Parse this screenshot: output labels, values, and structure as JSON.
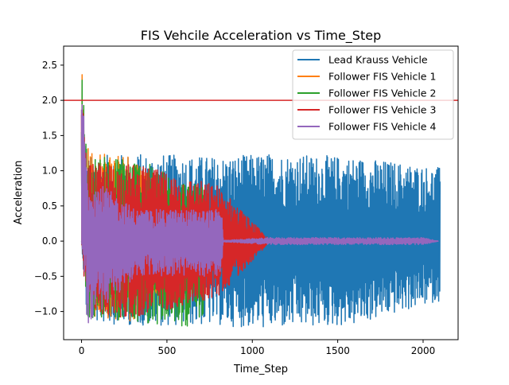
{
  "chart_data": {
    "type": "line",
    "title": "FIS Vehcile Acceleration vs Time_Step",
    "xlabel": "Time_Step",
    "ylabel": "Acceleration",
    "xlim": [
      -105,
      2205
    ],
    "ylim": [
      -1.4,
      2.77
    ],
    "x_ticks": [
      0,
      500,
      1000,
      1500,
      2000
    ],
    "x_tick_labels": [
      "0",
      "500",
      "1000",
      "1500",
      "2000"
    ],
    "y_ticks": [
      -1.0,
      -0.5,
      0.0,
      0.5,
      1.0,
      1.5,
      2.0,
      2.5
    ],
    "y_tick_labels": [
      "−1.0",
      "−0.5",
      "0.0",
      "0.5",
      "1.0",
      "1.5",
      "2.0",
      "2.5"
    ],
    "grid": false,
    "legend_position": "top-right",
    "reference_line": {
      "orientation": "horizontal",
      "y": 2.0,
      "color": "#d62728"
    },
    "series": [
      {
        "name": "Lead Krauss Vehicle",
        "color": "#1f77b4",
        "description_of_shape": "oscillation around 0",
        "x_range": [
          0,
          2100
        ],
        "envelope": [
          {
            "x": 0,
            "upper": 0.0,
            "lower": 0.0
          },
          {
            "x": 30,
            "upper": 1.2,
            "lower": -1.15
          },
          {
            "x": 300,
            "upper": 1.25,
            "lower": -1.2
          },
          {
            "x": 800,
            "upper": 1.2,
            "lower": -1.2
          },
          {
            "x": 1100,
            "upper": 1.25,
            "lower": -1.25
          },
          {
            "x": 1600,
            "upper": 1.2,
            "lower": -1.2
          },
          {
            "x": 2100,
            "upper": 1.05,
            "lower": -0.85
          }
        ]
      },
      {
        "name": "Follower FIS Vehicle 1",
        "color": "#ff7f0e",
        "x_range": [
          0,
          560
        ],
        "peak": 2.55,
        "envelope": [
          {
            "x": 0,
            "upper": 2.55,
            "lower": 0.0
          },
          {
            "x": 30,
            "upper": 1.35,
            "lower": -1.05
          },
          {
            "x": 300,
            "upper": 1.25,
            "lower": -1.15
          },
          {
            "x": 560,
            "upper": 0.6,
            "lower": -0.55
          }
        ]
      },
      {
        "name": "Follower FIS Vehicle 2",
        "color": "#2ca02c",
        "x_range": [
          0,
          720
        ],
        "peak": 2.58,
        "envelope": [
          {
            "x": 0,
            "upper": 2.58,
            "lower": 0.0
          },
          {
            "x": 30,
            "upper": 1.2,
            "lower": -1.1
          },
          {
            "x": 300,
            "upper": 1.2,
            "lower": -1.15
          },
          {
            "x": 720,
            "upper": 0.75,
            "lower": -1.25
          }
        ]
      },
      {
        "name": "Follower FIS Vehicle 3",
        "color": "#d62728",
        "x_range": [
          0,
          1100
        ],
        "peak": 2.2,
        "envelope": [
          {
            "x": 0,
            "upper": 2.2,
            "lower": 0.0
          },
          {
            "x": 30,
            "upper": 1.1,
            "lower": -1.05
          },
          {
            "x": 300,
            "upper": 1.1,
            "lower": -1.1
          },
          {
            "x": 800,
            "upper": 0.8,
            "lower": -0.8
          },
          {
            "x": 1100,
            "upper": 0.02,
            "lower": -0.02
          }
        ]
      },
      {
        "name": "Follower FIS Vehicle 4",
        "color": "#9467bd",
        "x_range": [
          0,
          2090
        ],
        "peak": 2.35,
        "envelope": [
          {
            "x": 0,
            "upper": 2.35,
            "lower": 0.0
          },
          {
            "x": 30,
            "upper": 0.95,
            "lower": -1.2
          },
          {
            "x": 320,
            "upper": 0.45,
            "lower": -0.5
          },
          {
            "x": 820,
            "upper": 0.45,
            "lower": -0.5
          },
          {
            "x": 830,
            "upper": 0.01,
            "lower": -0.01
          },
          {
            "x": 1100,
            "upper": 0.05,
            "lower": -0.05
          },
          {
            "x": 2000,
            "upper": 0.05,
            "lower": -0.05
          },
          {
            "x": 2090,
            "upper": 0.0,
            "lower": 0.0
          }
        ]
      }
    ]
  }
}
